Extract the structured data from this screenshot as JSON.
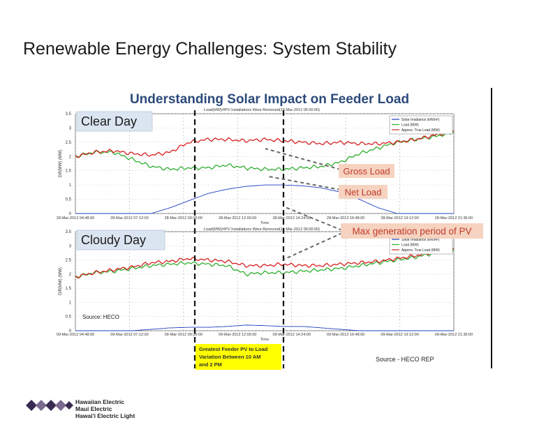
{
  "slide": {
    "title": "Renewable Energy Challenges: System Stability",
    "figure_heading": "Understanding Solar Impact on Feeder Load",
    "source_note": "Source: HECO",
    "source_rep": "Source - HECO REP",
    "highlight_box": [
      "Greatest Feeder PV to Load",
      "Variation Between 10 AM",
      "and 2 PM"
    ],
    "logo_lines": [
      "Hawaiian Electric",
      "Maui Electric",
      "Hawai'i Electric Light"
    ],
    "colors": {
      "title": "#1a1a1a",
      "heading_blue": "#2c4a7a",
      "callout_bg": "#f6d3c0",
      "callout_text": "#c0392b",
      "label_bg": "#dbe5f1",
      "highlight": "#ffff00"
    }
  },
  "chart_data": [
    {
      "type": "line",
      "panel_label": "Clear Day",
      "title": "Load(MW)/#PV Installations Were Removed(15-Mar-2012 05:00:00)",
      "xlabel": "Time",
      "ylabel": "Diff(MW) (MW)",
      "ylim": [
        0,
        3.5
      ],
      "yticks": [
        "0",
        "0.5",
        "1",
        "1.5",
        "2",
        "2.5",
        "3",
        "3.5"
      ],
      "x": [
        0,
        1,
        2,
        3,
        4,
        5,
        6,
        7,
        8,
        9,
        10,
        11,
        12,
        13,
        14,
        15,
        16,
        17,
        18,
        19,
        20
      ],
      "xticks": [
        "28-Mar-2012 04:48:00",
        "28-Mar-2012 07:12:00",
        "28-Mar-2012 09:36:00",
        "28-Mar-2012 12:00:00",
        "28-Mar-2012 14:24:00",
        "28-Mar-2012 16:48:00",
        "28-Mar-2012 19:12:00",
        "28-Mar-2012 21:36:00"
      ],
      "series": [
        {
          "name": "Solar Irradiance (kW/m²)",
          "color": "#1f3fbf",
          "values": [
            0,
            0,
            0,
            0,
            0,
            0.2,
            0.45,
            0.7,
            0.85,
            0.95,
            1.0,
            1.0,
            0.97,
            0.9,
            0.75,
            0.5,
            0.2,
            0,
            0,
            0,
            0
          ]
        },
        {
          "name": "Load (MW)",
          "color": "#2fae2f",
          "values": [
            2.0,
            2.15,
            2.15,
            1.9,
            1.65,
            1.55,
            1.6,
            1.6,
            1.7,
            1.6,
            1.55,
            1.55,
            1.6,
            1.65,
            1.8,
            2.1,
            2.3,
            2.5,
            2.6,
            2.7,
            2.85
          ]
        },
        {
          "name": "Approx. True Load (MW)",
          "color": "#d62020",
          "values": [
            2.0,
            2.15,
            2.2,
            2.1,
            2.05,
            2.15,
            2.5,
            2.6,
            2.6,
            2.55,
            2.6,
            2.55,
            2.5,
            2.45,
            2.5,
            2.45,
            2.45,
            2.5,
            2.6,
            2.75,
            2.9
          ]
        }
      ],
      "annotations": [
        "Gross Load",
        "Net Load",
        "Max generation period of PV"
      ]
    },
    {
      "type": "line",
      "panel_label": "Cloudy Day",
      "title": "Load(MW)/#PV Installations Were Removed(15-Mar-2012 05:00:00)",
      "xlabel": "Time",
      "ylabel": "Diff(MW) (MW)",
      "ylim": [
        0,
        3.5
      ],
      "yticks": [
        "0",
        "0.5",
        "1",
        "1.5",
        "2",
        "2.5",
        "3",
        "3.5"
      ],
      "x": [
        0,
        1,
        2,
        3,
        4,
        5,
        6,
        7,
        8,
        9,
        10,
        11,
        12,
        13,
        14,
        15,
        16,
        17,
        18,
        19,
        20
      ],
      "xticks": [
        "09-Mar-2012 04:48:00",
        "09-Mar-2012 07:12:00",
        "09-Mar-2012 09:36:00",
        "09-Mar-2012 12:00:00",
        "09-Mar-2012 14:24:00",
        "09-Mar-2012 16:48:00",
        "09-Mar-2012 19:12:00",
        "09-Mar-2012 21:36:00"
      ],
      "series": [
        {
          "name": "Solar Irradiance (kW/m²)",
          "color": "#1f3fbf",
          "values": [
            0,
            0,
            0,
            0,
            0.05,
            0.1,
            0.12,
            0.12,
            0.15,
            0.2,
            0.18,
            0.15,
            0.15,
            0.1,
            0.05,
            0,
            0,
            0,
            0,
            0,
            0
          ]
        },
        {
          "name": "Load (MW)",
          "color": "#2fae2f",
          "values": [
            1.9,
            2.05,
            2.1,
            2.2,
            2.3,
            2.35,
            2.4,
            2.35,
            2.3,
            2.0,
            2.05,
            2.05,
            2.1,
            2.15,
            2.2,
            2.3,
            2.4,
            2.5,
            2.6,
            2.75,
            2.85
          ]
        },
        {
          "name": "Approx. True Load (MW)",
          "color": "#d62020",
          "values": [
            1.9,
            2.05,
            2.15,
            2.25,
            2.4,
            2.45,
            2.55,
            2.5,
            2.45,
            2.3,
            2.3,
            2.35,
            2.3,
            2.3,
            2.35,
            2.4,
            2.45,
            2.55,
            2.65,
            2.8,
            2.9
          ]
        }
      ]
    }
  ]
}
